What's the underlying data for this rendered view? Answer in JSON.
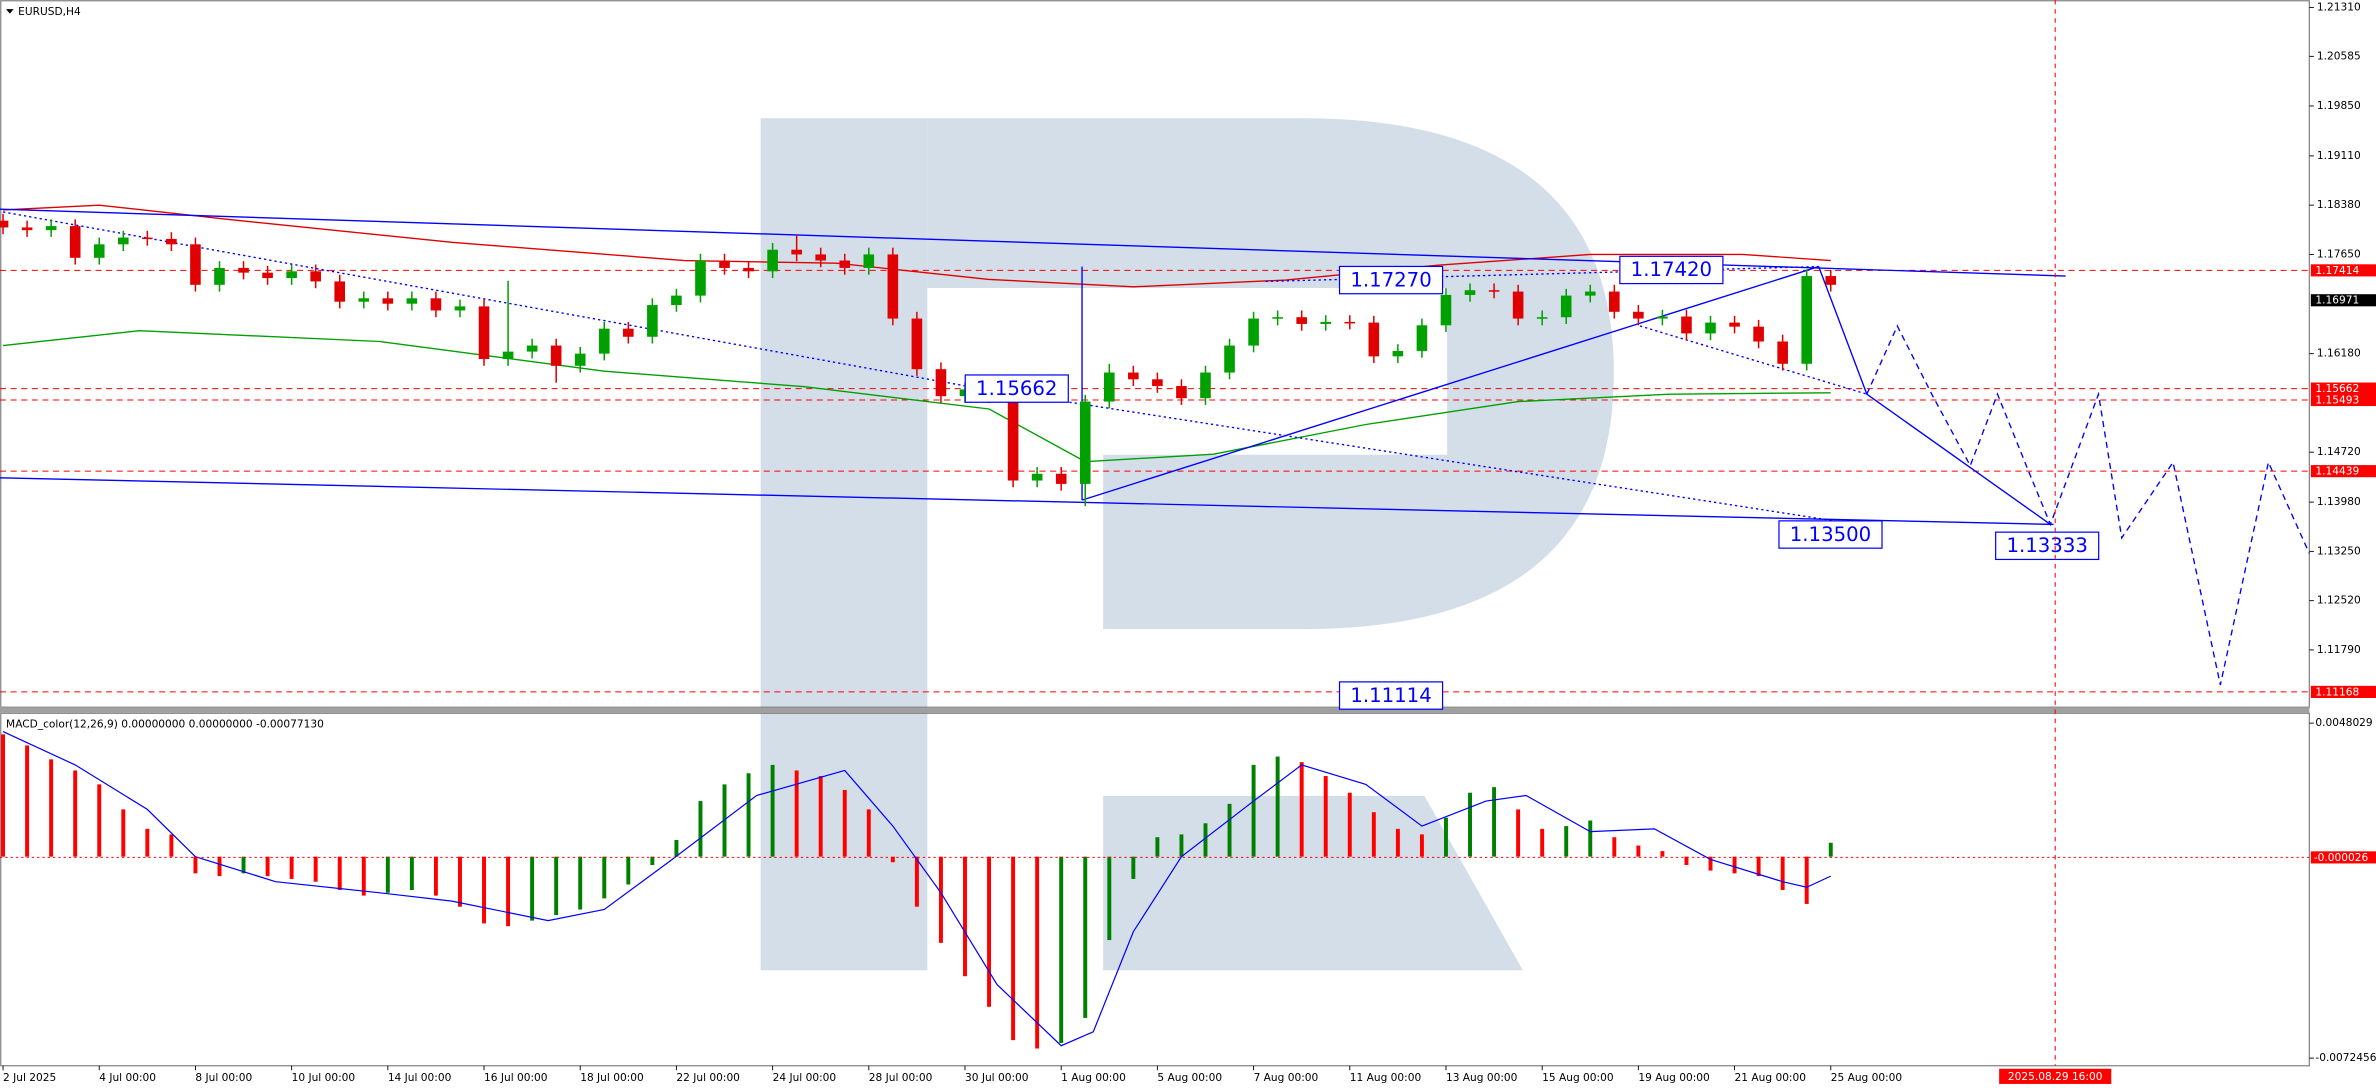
{
  "chart_data": [
    {
      "type": "candlestick",
      "title": "EURUSD,H4",
      "up_color": "#00a000",
      "down_color": "#e00000",
      "xlim": [
        -0.38,
        287.7
      ],
      "ylim": [
        1.1093,
        1.2142
      ],
      "yticks": [
        {
          "value": 1.2131,
          "label": "1.21310"
        },
        {
          "value": 1.20585,
          "label": "1.20585"
        },
        {
          "value": 1.1985,
          "label": "1.19850"
        },
        {
          "value": 1.1911,
          "label": "1.19110"
        },
        {
          "value": 1.1838,
          "label": "1.18380"
        },
        {
          "value": 1.1765,
          "label": "1.17650"
        },
        {
          "value": 1.1618,
          "label": "1.16180"
        },
        {
          "value": 1.1472,
          "label": "1.14720"
        },
        {
          "value": 1.1398,
          "label": "1.13980"
        },
        {
          "value": 1.1325,
          "label": "1.13250"
        },
        {
          "value": 1.1252,
          "label": "1.12520"
        },
        {
          "value": 1.1179,
          "label": "1.11790"
        }
      ],
      "x": [
        0,
        3,
        6,
        9,
        12,
        15,
        18,
        21,
        24,
        27,
        30,
        33,
        36,
        39,
        42,
        45,
        48,
        51,
        54,
        57,
        60,
        63,
        66,
        69,
        72,
        75,
        78,
        81,
        84,
        87,
        90,
        93,
        96,
        99,
        102,
        105,
        108,
        111,
        114,
        117,
        120,
        123,
        126,
        129,
        132,
        135,
        138,
        141,
        144,
        147,
        150,
        153,
        156,
        159,
        162,
        165,
        168,
        171,
        174,
        177,
        180,
        183,
        186,
        189,
        192,
        195,
        198,
        201,
        204,
        207,
        210,
        213,
        216,
        219,
        222,
        225,
        228
      ],
      "open": [
        1.1815,
        1.1805,
        1.1801,
        1.1807,
        1.176,
        1.178,
        1.179,
        1.1788,
        1.178,
        1.172,
        1.1745,
        1.1738,
        1.173,
        1.174,
        1.1725,
        1.1695,
        1.17,
        1.1692,
        1.17,
        1.1682,
        1.1688,
        1.161,
        1.1621,
        1.163,
        1.16,
        1.1618,
        1.1655,
        1.1643,
        1.169,
        1.1704,
        1.1756,
        1.1745,
        1.174,
        1.1772,
        1.1765,
        1.1756,
        1.1745,
        1.1765,
        1.167,
        1.1595,
        1.1555,
        1.1565,
        1.1555,
        1.143,
        1.144,
        1.1425,
        1.1547,
        1.159,
        1.158,
        1.157,
        1.1552,
        1.159,
        1.163,
        1.167,
        1.1672,
        1.1662,
        1.1665,
        1.1664,
        1.1614,
        1.1622,
        1.166,
        1.1705,
        1.1712,
        1.171,
        1.167,
        1.1672,
        1.1704,
        1.171,
        1.168,
        1.167,
        1.1673,
        1.1648,
        1.1664,
        1.1658,
        1.1636,
        1.1603,
        1.1733
      ],
      "high": [
        1.1825,
        1.1815,
        1.1817,
        1.1817,
        1.179,
        1.18,
        1.18,
        1.1798,
        1.179,
        1.1755,
        1.1755,
        1.1748,
        1.175,
        1.175,
        1.1735,
        1.171,
        1.171,
        1.171,
        1.171,
        1.1698,
        1.1698,
        1.1726,
        1.164,
        1.164,
        1.1628,
        1.1665,
        1.1665,
        1.17,
        1.1714,
        1.1766,
        1.1766,
        1.1755,
        1.1782,
        1.1794,
        1.1775,
        1.1766,
        1.1775,
        1.1775,
        1.168,
        1.1605,
        1.1575,
        1.1575,
        1.1565,
        1.145,
        1.145,
        1.1557,
        1.1603,
        1.16,
        1.159,
        1.158,
        1.16,
        1.164,
        1.168,
        1.1682,
        1.1682,
        1.1675,
        1.1675,
        1.1674,
        1.1632,
        1.167,
        1.1715,
        1.1722,
        1.1722,
        1.172,
        1.1682,
        1.1714,
        1.172,
        1.172,
        1.169,
        1.1683,
        1.1683,
        1.1674,
        1.1674,
        1.1668,
        1.1646,
        1.1743,
        1.1742
      ],
      "low": [
        1.1795,
        1.1791,
        1.1791,
        1.175,
        1.175,
        1.177,
        1.1778,
        1.177,
        1.171,
        1.171,
        1.1728,
        1.172,
        1.172,
        1.1715,
        1.1685,
        1.1685,
        1.1682,
        1.1682,
        1.1672,
        1.1672,
        1.16,
        1.16,
        1.1611,
        1.1575,
        1.159,
        1.1608,
        1.1633,
        1.1633,
        1.168,
        1.1694,
        1.1735,
        1.173,
        1.173,
        1.1755,
        1.1746,
        1.1735,
        1.1735,
        1.166,
        1.1585,
        1.1545,
        1.1545,
        1.1545,
        1.142,
        1.142,
        1.1415,
        1.1392,
        1.1537,
        1.157,
        1.156,
        1.1542,
        1.1542,
        1.158,
        1.162,
        1.166,
        1.1652,
        1.1652,
        1.1654,
        1.1604,
        1.1604,
        1.1612,
        1.165,
        1.1695,
        1.17,
        1.166,
        1.166,
        1.1662,
        1.1694,
        1.167,
        1.166,
        1.166,
        1.1638,
        1.1638,
        1.1648,
        1.1626,
        1.1593,
        1.1593,
        1.171
      ],
      "close": [
        1.1805,
        1.1801,
        1.1807,
        1.176,
        1.178,
        1.179,
        1.1788,
        1.178,
        1.172,
        1.1745,
        1.1738,
        1.173,
        1.174,
        1.1725,
        1.1695,
        1.17,
        1.1692,
        1.17,
        1.1682,
        1.1688,
        1.161,
        1.1621,
        1.163,
        1.16,
        1.1618,
        1.1655,
        1.1643,
        1.169,
        1.1704,
        1.1756,
        1.1745,
        1.174,
        1.1772,
        1.1765,
        1.1756,
        1.1745,
        1.1765,
        1.167,
        1.1595,
        1.1555,
        1.1565,
        1.1555,
        1.143,
        1.144,
        1.1425,
        1.1547,
        1.159,
        1.158,
        1.157,
        1.1552,
        1.159,
        1.163,
        1.167,
        1.1672,
        1.1662,
        1.1665,
        1.1664,
        1.1614,
        1.1622,
        1.166,
        1.1705,
        1.1712,
        1.171,
        1.167,
        1.1672,
        1.1704,
        1.171,
        1.168,
        1.167,
        1.1673,
        1.1648,
        1.1664,
        1.1658,
        1.1636,
        1.1603,
        1.1733,
        1.172
      ],
      "overlays": [
        {
          "color": "#e00000",
          "style": "solid",
          "x": [
            0,
            12,
            28,
            56,
            85,
            104,
            123,
            141,
            160,
            179,
            198,
            217,
            228
          ],
          "values": [
            1.1831,
            1.1838,
            1.1817,
            1.1783,
            1.1756,
            1.1752,
            1.1728,
            1.1717,
            1.1727,
            1.1749,
            1.1765,
            1.1765,
            1.1756
          ]
        },
        {
          "color": "#00a000",
          "style": "solid",
          "x": [
            0,
            17,
            47,
            75,
            100,
            123,
            135,
            151,
            170,
            189,
            208,
            228
          ],
          "values": [
            1.163,
            1.1652,
            1.1636,
            1.1592,
            1.1569,
            1.1536,
            1.1458,
            1.1469,
            1.1513,
            1.1547,
            1.1558,
            1.156
          ]
        },
        {
          "color": "#0000ff",
          "style": "solid",
          "x": [
            -0.38,
            257.3
          ],
          "values": [
            1.1832,
            1.1733
          ]
        },
        {
          "color": "#0000ff",
          "style": "solid",
          "x": [
            -0.38,
            255.8
          ],
          "values": [
            1.1434,
            1.1365
          ]
        },
        {
          "color": "#0000ff",
          "style": "solid",
          "x": [
            134.6,
            226.5
          ],
          "values": [
            1.1401,
            1.1747
          ]
        },
        {
          "color": "#0000ff",
          "style": "solid",
          "x": [
            134.6,
            134.6
          ],
          "values": [
            1.1747,
            1.1401
          ]
        },
        {
          "color": "#0000ff",
          "style": "dotted",
          "x": [
            0,
            120.6
          ],
          "values": [
            1.1828,
            1.1569
          ]
        },
        {
          "color": "#0000ff",
          "style": "dotted",
          "x": [
            120.6,
            234
          ],
          "values": [
            1.1569,
            1.136
          ]
        },
        {
          "color": "#0000ff",
          "style": "dotted",
          "x": [
            204.2,
            232.5
          ],
          "values": [
            1.1659,
            1.1558
          ]
        },
        {
          "color": "#0000ff",
          "style": "dotted",
          "x": [
            157.5,
            226.5
          ],
          "values": [
            1.1725,
            1.1747
          ]
        },
        {
          "color": "#0000ff",
          "style": "solid",
          "x": [
            226.5,
            232.5,
            255.4
          ],
          "values": [
            1.1747,
            1.1558,
            1.1365
          ]
        },
        {
          "color": "#0000ff",
          "style": "dashed",
          "x": [
            232.5,
            236.3,
            240.6,
            245.4,
            248.8,
            252.6,
            255.4,
            261.4,
            264.3,
            270.7,
            276.6,
            282.6,
            287.7
          ],
          "values": [
            1.1558,
            1.1659,
            1.1558,
            1.1452,
            1.1558,
            1.1446,
            1.1365,
            1.1558,
            1.1345,
            1.1457,
            1.1127,
            1.1457,
            1.1322
          ]
        }
      ],
      "levels": [
        {
          "value": 1.17414,
          "color": "#ff0000",
          "style": "dashed"
        },
        {
          "value": 1.16971,
          "color": "#000000",
          "style": "none"
        },
        {
          "value": 1.15662,
          "color": "#ff0000",
          "style": "dashed"
        },
        {
          "value": 1.15493,
          "color": "#ff0000",
          "style": "dashed"
        },
        {
          "value": 1.14439,
          "color": "#ff0000",
          "style": "dashed"
        },
        {
          "value": 1.11168,
          "color": "#ff0000",
          "style": "dashed"
        }
      ],
      "annotations": [
        {
          "value": 1.1727,
          "label": "1.17270"
        },
        {
          "value": 1.1742,
          "label": "1.17420"
        },
        {
          "value": 1.15662,
          "label": "1.15662"
        },
        {
          "value": 1.135,
          "label": "1.13500"
        },
        {
          "value": 1.13333,
          "label": "1.13333"
        },
        {
          "value": 1.11114,
          "label": "1.11114"
        }
      ]
    },
    {
      "type": "macd",
      "title": "MACD_color(12,26,9) 0.00000000 0.00000000 -0.00077130",
      "up_color": "#008000",
      "down_color": "#ff0000",
      "xlim": [
        -0.38,
        287.7
      ],
      "ylim": [
        -0.00752,
        0.00513
      ],
      "yticks": [
        0.0048029,
        -0.0072456
      ],
      "current": -2.6e-05,
      "x": [
        0,
        3,
        6,
        9,
        12,
        15,
        18,
        21,
        24,
        27,
        30,
        33,
        36,
        39,
        42,
        45,
        48,
        51,
        54,
        57,
        60,
        63,
        66,
        69,
        72,
        75,
        78,
        81,
        84,
        87,
        90,
        93,
        96,
        99,
        102,
        105,
        108,
        111,
        114,
        117,
        120,
        123,
        126,
        129,
        132,
        135,
        138,
        141,
        144,
        147,
        150,
        153,
        156,
        159,
        162,
        165,
        168,
        171,
        174,
        177,
        180,
        183,
        186,
        189,
        192,
        195,
        198,
        201,
        204,
        207,
        210,
        213,
        216,
        219,
        222,
        225,
        228
      ],
      "values": [
        0.0044,
        0.004,
        0.0035,
        0.0031,
        0.0026,
        0.0017,
        0.001,
        0.0008,
        -0.0006,
        -0.0007,
        -0.0006,
        -0.0007,
        -0.0008,
        -0.0009,
        -0.0012,
        -0.0014,
        -0.0013,
        -0.0012,
        -0.0014,
        -0.0018,
        -0.0024,
        -0.0025,
        -0.0023,
        -0.0021,
        -0.0019,
        -0.0015,
        -0.001,
        -0.0003,
        0.0006,
        0.002,
        0.0026,
        0.003,
        0.0033,
        0.0031,
        0.0029,
        0.0024,
        0.0017,
        -0.0002,
        -0.0018,
        -0.0031,
        -0.0043,
        -0.0054,
        -0.0066,
        -0.0069,
        -0.0067,
        -0.0058,
        -0.003,
        -0.0008,
        0.0007,
        0.0008,
        0.0012,
        0.0019,
        0.0033,
        0.0036,
        0.0034,
        0.0029,
        0.0023,
        0.0016,
        0.001,
        0.0008,
        0.0014,
        0.0023,
        0.0025,
        0.0017,
        0.001,
        0.0011,
        0.0013,
        0.0007,
        0.0004,
        0.0002,
        -0.0003,
        -0.0005,
        -0.0006,
        -0.0007,
        -0.0012,
        -0.0017,
        0.0005
      ],
      "signal": {
        "color": "#0000ff",
        "x": [
          0,
          9,
          18,
          24,
          34,
          47,
          56,
          68,
          75,
          83,
          94,
          105,
          111,
          117,
          124,
          132,
          136,
          141,
          147,
          156,
          162,
          170,
          177,
          185,
          190,
          198,
          206,
          213,
          222,
          225,
          228
        ],
        "values": [
          0.0045,
          0.0033,
          0.0017,
          0,
          -0.0009,
          -0.0013,
          -0.0016,
          -0.0023,
          -0.0019,
          -0.0002,
          0.0022,
          0.0031,
          0.0011,
          -0.0013,
          -0.0046,
          -0.0068,
          -0.0063,
          -0.0027,
          0,
          0.002,
          0.0033,
          0.0026,
          0.0011,
          0.002,
          0.0022,
          0.0009,
          0.001,
          -0.0001,
          -0.0009,
          -0.0011,
          -0.0007
        ]
      },
      "xticks": [
        {
          "value": 0,
          "label": "2 Jul 2025"
        },
        {
          "value": 12,
          "label": "4 Jul 00:00"
        },
        {
          "value": 24,
          "label": "8 Jul 00:00"
        },
        {
          "value": 36,
          "label": "10 Jul 00:00"
        },
        {
          "value": 48,
          "label": "14 Jul 00:00"
        },
        {
          "value": 60,
          "label": "16 Jul 00:00"
        },
        {
          "value": 72,
          "label": "18 Jul 00:00"
        },
        {
          "value": 84,
          "label": "22 Jul 00:00"
        },
        {
          "value": 96,
          "label": "24 Jul 00:00"
        },
        {
          "value": 108,
          "label": "28 Jul 00:00"
        },
        {
          "value": 120,
          "label": "30 Jul 00:00"
        },
        {
          "value": 132,
          "label": "1 Aug 00:00"
        },
        {
          "value": 144,
          "label": "5 Aug 00:00"
        },
        {
          "value": 156,
          "label": "7 Aug 00:00"
        },
        {
          "value": 168,
          "label": "11 Aug 00:00"
        },
        {
          "value": 180,
          "label": "13 Aug 00:00"
        },
        {
          "value": 192,
          "label": "15 Aug 00:00"
        },
        {
          "value": 204,
          "label": "19 Aug 00:00"
        },
        {
          "value": 216,
          "label": "21 Aug 00:00"
        },
        {
          "value": 228,
          "label": "25 Aug 00:00"
        }
      ],
      "marker": {
        "value": 256,
        "label": "2025.08.29 16:00"
      }
    }
  ]
}
